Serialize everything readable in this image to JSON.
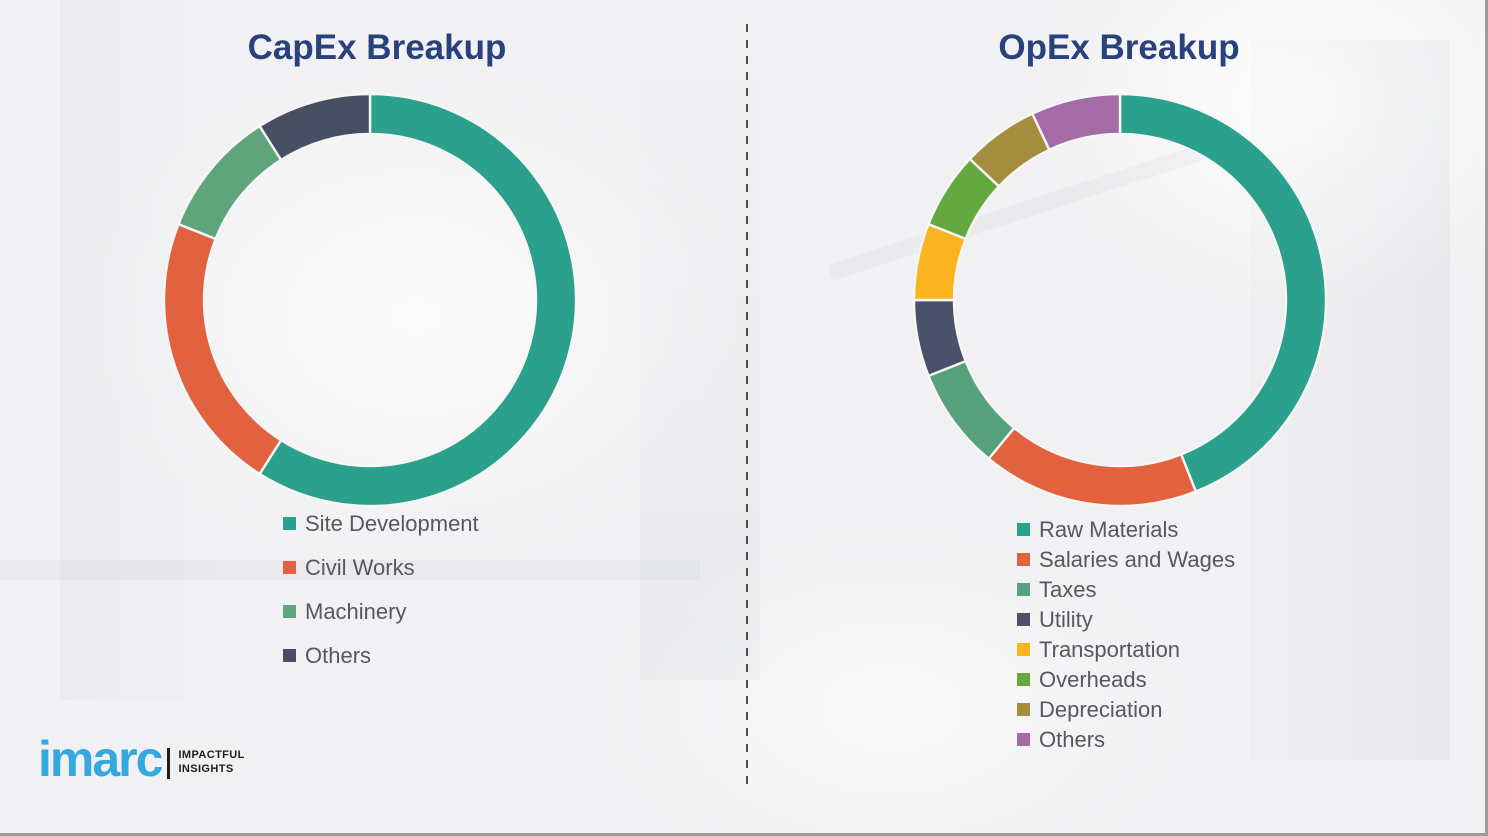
{
  "page": {
    "background_color": "#f1f1f3",
    "edge_border_color": "#9c9c9c",
    "divider_color": "#4e4e4e",
    "title_color": "#29417c",
    "legend_text_color": "#54585f"
  },
  "brand": {
    "name": "imarc",
    "tagline_line1": "IMPACTFUL",
    "tagline_line2": "INSIGHTS",
    "brand_color": "#33a9e0",
    "tagline_color": "#1d1d1b"
  },
  "chart_data": [
    {
      "type": "pie",
      "subtype": "donut",
      "title": "CapEx Breakup",
      "labels": [
        "Site Development",
        "Civil Works",
        "Machinery",
        "Others"
      ],
      "values": [
        59,
        22,
        10,
        9
      ],
      "unit": "percent-of-ring, estimated from arc angles (no data labels shown in image)",
      "colors": [
        "#2ba18d",
        "#e2613e",
        "#5ea57b",
        "#474f63"
      ],
      "start_angle_deg": 0,
      "direction": "clockwise",
      "legend_position": "below-chart-left",
      "ring_outer_radius": 206,
      "ring_inner_radius": 166
    },
    {
      "type": "pie",
      "subtype": "donut",
      "title": "OpEx Breakup",
      "labels": [
        "Raw Materials",
        "Salaries and Wages",
        "Taxes",
        "Utility",
        "Transportation",
        "Overheads",
        "Depreciation",
        "Others"
      ],
      "values": [
        44,
        17,
        8,
        6,
        6,
        6,
        6,
        7
      ],
      "unit": "percent-of-ring, estimated from arc angles (no data labels shown in image)",
      "colors": [
        "#2ba18d",
        "#e2613e",
        "#57a17d",
        "#4a5168",
        "#f9b41f",
        "#63a93f",
        "#a58d3e",
        "#a56ba7"
      ],
      "start_angle_deg": 0,
      "direction": "clockwise",
      "legend_position": "below-chart-left",
      "ring_outer_radius": 206,
      "ring_inner_radius": 166
    }
  ]
}
